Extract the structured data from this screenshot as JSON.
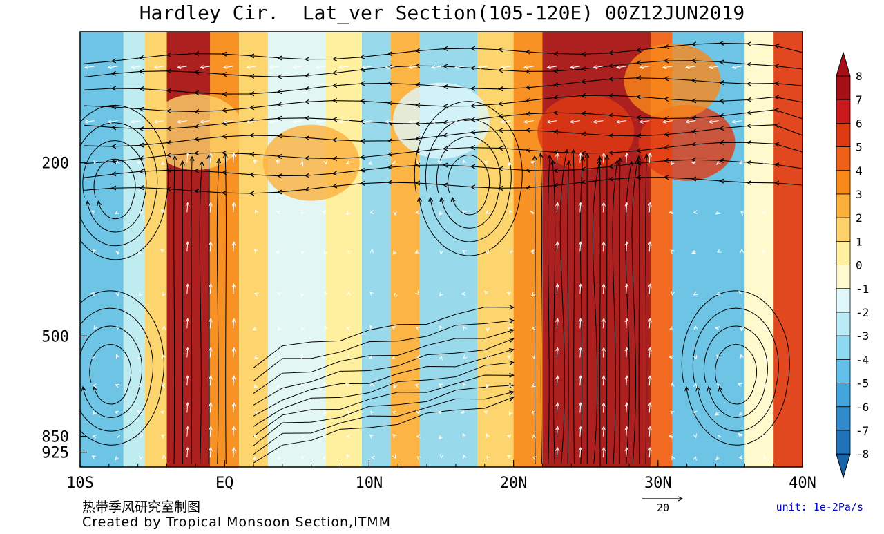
{
  "chart_data": {
    "type": "heatmap",
    "title": "Hardley Cir.  Lat_ver Section(105-120E) 00Z12JUN2019",
    "x_ticks": [
      "10S",
      "EQ",
      "10N",
      "20N",
      "30N",
      "40N"
    ],
    "x_tick_values": [
      -10,
      0,
      10,
      20,
      30,
      40
    ],
    "y_ticks": [
      "200",
      "500",
      "850",
      "925"
    ],
    "y_tick_values": [
      200,
      500,
      850,
      925
    ],
    "xlim": [
      -10,
      40
    ],
    "ylim_hpa": [
      1000,
      100
    ],
    "colorbar": {
      "labels": [
        "8",
        "7",
        "6",
        "5",
        "4",
        "3",
        "2",
        "1",
        "0",
        "-1",
        "-2",
        "-3",
        "-4",
        "-5",
        "-6",
        "-7",
        "-8"
      ],
      "levels": [
        8,
        7,
        6,
        5,
        4,
        3,
        2,
        1,
        0,
        -1,
        -2,
        -3,
        -4,
        -5,
        -6,
        -7,
        -8
      ],
      "colors": {
        "8": "#a50f15",
        "7": "#cb181d",
        "6": "#e03a13",
        "5": "#f06018",
        "4": "#f98a1a",
        "3": "#fcb03c",
        "2": "#fdd26a",
        "1": "#fff0a0",
        "0": "#fffbd0",
        "-1": "#dff7fb",
        "-2": "#b8ebf6",
        "-3": "#8fd8f2",
        "-4": "#62c0ea",
        "-5": "#42a6dd",
        "-6": "#2f8bcc",
        "-7": "#2073b8",
        "-8": "#1665a8"
      },
      "unit": "unit: 1e-2Pa/s"
    },
    "field_bands": [
      {
        "lat_from": -10,
        "lat_to": -7,
        "value": -4
      },
      {
        "lat_from": -7,
        "lat_to": -5.5,
        "value": -2
      },
      {
        "lat_from": -5.5,
        "lat_to": -4,
        "value": 2
      },
      {
        "lat_from": -4,
        "lat_to": -1,
        "value": 8
      },
      {
        "lat_from": -1,
        "lat_to": 1,
        "value": 4
      },
      {
        "lat_from": 1,
        "lat_to": 3,
        "value": 2
      },
      {
        "lat_from": 3,
        "lat_to": 7,
        "value": -1
      },
      {
        "lat_from": 7,
        "lat_to": 9.5,
        "value": 1
      },
      {
        "lat_from": 9.5,
        "lat_to": 11.5,
        "value": -3
      },
      {
        "lat_from": 11.5,
        "lat_to": 13.5,
        "value": 3
      },
      {
        "lat_from": 13.5,
        "lat_to": 17.5,
        "value": -3
      },
      {
        "lat_from": 17.5,
        "lat_to": 20,
        "value": 2
      },
      {
        "lat_from": 20,
        "lat_to": 22,
        "value": 4
      },
      {
        "lat_from": 22,
        "lat_to": 29.5,
        "value": 8
      },
      {
        "lat_from": 29.5,
        "lat_to": 31,
        "value": 5
      },
      {
        "lat_from": 31,
        "lat_to": 36,
        "value": -4
      },
      {
        "lat_from": 36,
        "lat_to": 38,
        "value": 0
      },
      {
        "lat_from": 38,
        "lat_to": 40,
        "value": 6
      }
    ],
    "upper_patches": [
      {
        "lat": 25,
        "p": 170,
        "value": 6
      },
      {
        "lat": 32,
        "p": 180,
        "value": 6
      },
      {
        "lat": 31,
        "p": 130,
        "value": 4
      },
      {
        "lat": 6,
        "p": 200,
        "value": 3
      },
      {
        "lat": -2,
        "p": 170,
        "value": 2
      },
      {
        "lat": 15,
        "p": 160,
        "value": -1
      }
    ],
    "vector_reference": "20",
    "circulation_centers": [
      {
        "lat": -7.5,
        "p": 240
      },
      {
        "lat": -7.8,
        "p": 640
      },
      {
        "lat": 17,
        "p": 235
      },
      {
        "lat": 35.5,
        "p": 640
      }
    ]
  },
  "footer": {
    "line1": "热带季风研究室制图",
    "line2": "Created by Tropical Monsoon Section,ITMM"
  }
}
